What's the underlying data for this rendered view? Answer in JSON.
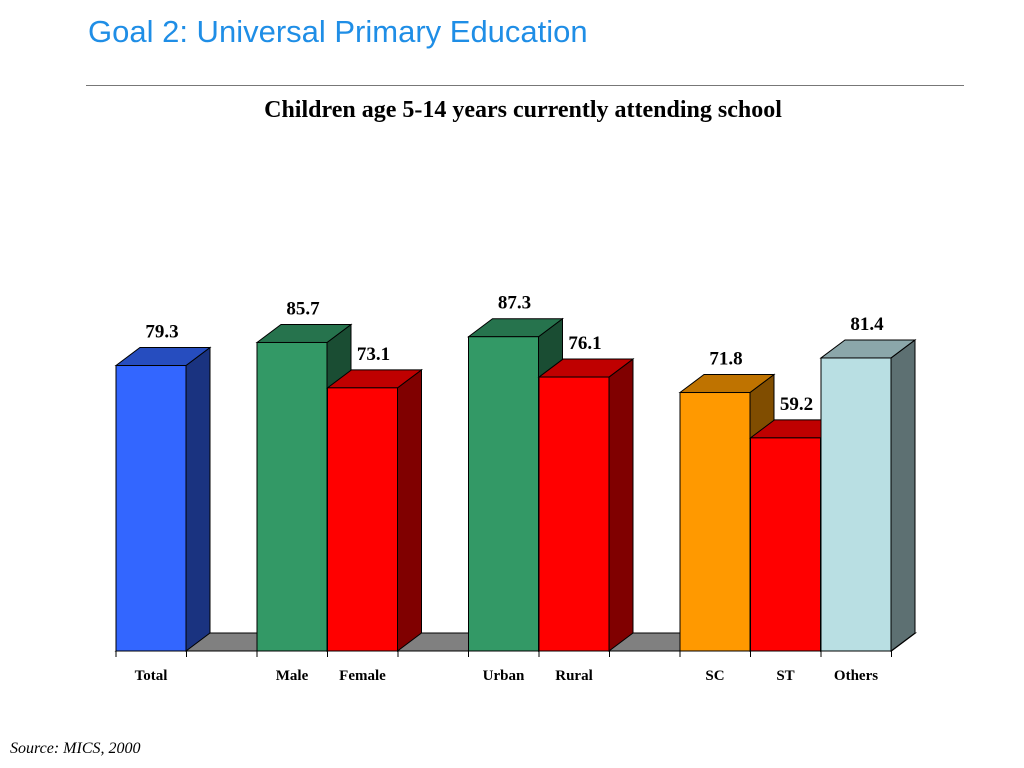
{
  "slide": {
    "title": "Goal 2: Universal Primary Education",
    "source": "Source: MICS, 2000"
  },
  "chart_data": {
    "type": "bar",
    "title": "Children age 5-14 years currently attending school",
    "xlabel": "",
    "ylabel": "",
    "ylim": [
      0,
      100
    ],
    "grid": false,
    "legend": "none",
    "three_d": true,
    "categories": [
      "Total",
      "Male",
      "Female",
      "Urban",
      "Rural",
      "SC",
      "ST",
      "Others"
    ],
    "values": [
      79.3,
      85.7,
      73.1,
      87.3,
      76.1,
      71.8,
      59.2,
      81.4
    ],
    "data_labels": [
      "79.3",
      "85.7",
      "73.1",
      "87.3",
      "76.1",
      "71.8",
      "59.2",
      "81.4"
    ],
    "groups": [
      [
        "Total"
      ],
      [
        "Male",
        "Female"
      ],
      [
        "Urban",
        "Rural"
      ],
      [
        "SC",
        "ST",
        "Others"
      ]
    ],
    "colors": {
      "Total": "#3366ff",
      "Male": "#339966",
      "Female": "#ff0000",
      "Urban": "#339966",
      "Rural": "#ff0000",
      "SC": "#ff9900",
      "ST": "#ff0000",
      "Others": "#b9dfe3"
    }
  }
}
